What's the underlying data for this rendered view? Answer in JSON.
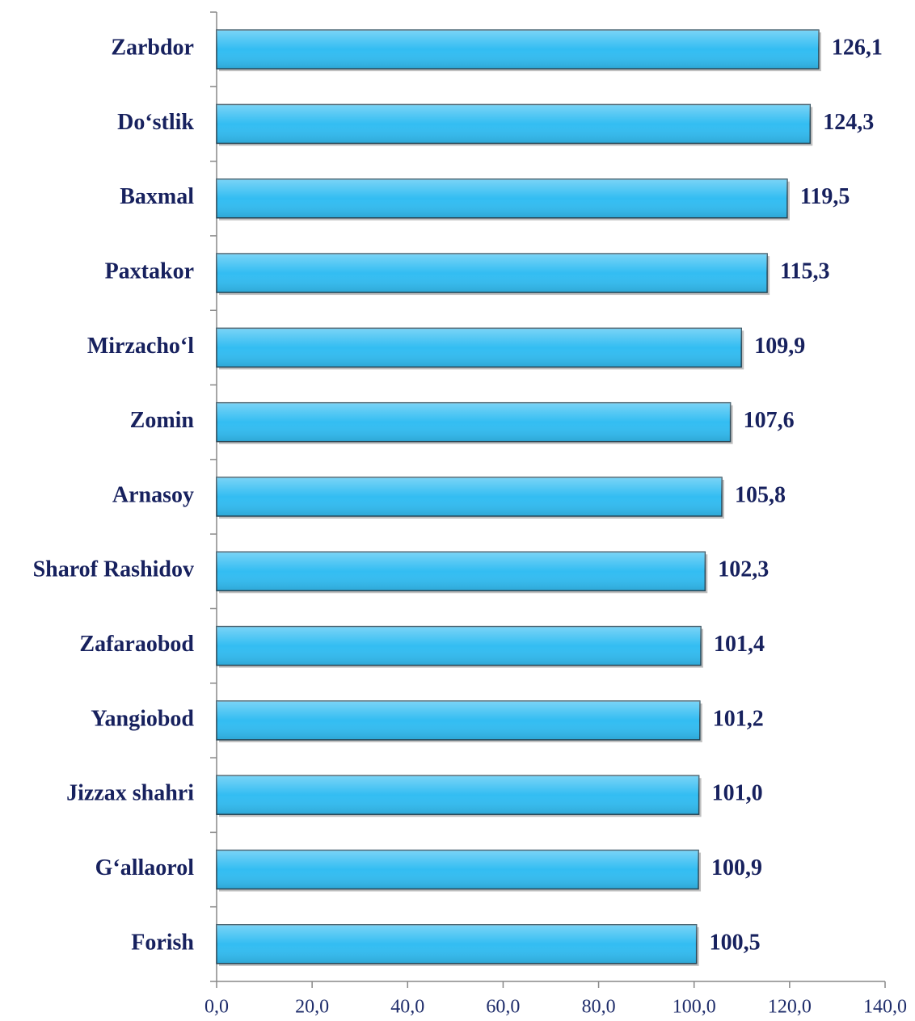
{
  "chart_data": {
    "type": "bar",
    "orientation": "horizontal",
    "categories": [
      "Zarbdor",
      "Do‘stlik",
      "Baxmal",
      "Paxtakor",
      "Mirzacho‘l",
      "Zomin",
      "Arnasoy",
      "Sharof Rashidov",
      "Zafaraobod",
      "Yangiobod",
      "Jizzax shahri",
      "G‘allaorol",
      "Forish"
    ],
    "values": [
      126.1,
      124.3,
      119.5,
      115.3,
      109.9,
      107.6,
      105.8,
      102.3,
      101.4,
      101.2,
      101.0,
      100.9,
      100.5
    ],
    "value_labels": [
      "126,1",
      "124,3",
      "119,5",
      "115,3",
      "109,9",
      "107,6",
      "105,8",
      "102,3",
      "101,4",
      "101,2",
      "101,0",
      "100,9",
      "100,5"
    ],
    "color": "#33bdf2",
    "xlim": [
      0,
      140
    ],
    "xticks": [
      {
        "value": 0,
        "label": "0,0"
      },
      {
        "value": 20,
        "label": "20,0"
      },
      {
        "value": 40,
        "label": "40,0"
      },
      {
        "value": 60,
        "label": "60,0"
      },
      {
        "value": 80,
        "label": "80,0"
      },
      {
        "value": 100,
        "label": "100,0"
      },
      {
        "value": 120,
        "label": "120,0"
      },
      {
        "value": 140,
        "label": "140,0"
      }
    ],
    "grid": false
  }
}
